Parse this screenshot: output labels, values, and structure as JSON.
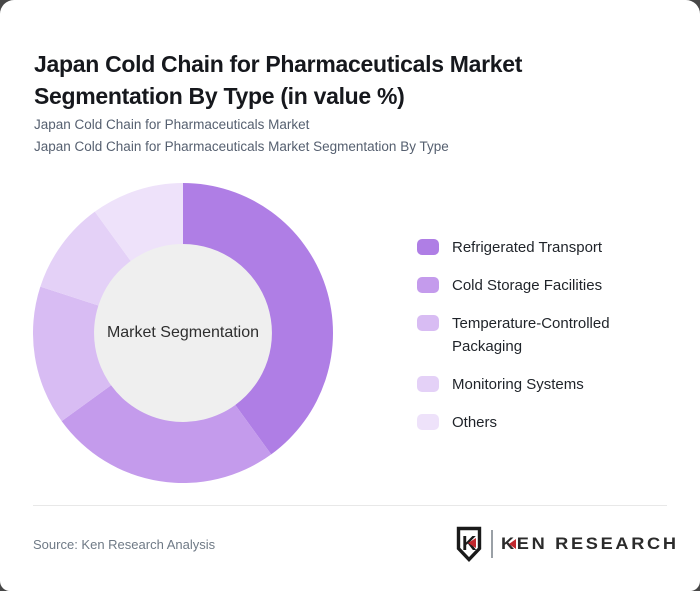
{
  "header": {
    "title_line1": "Japan Cold Chain for Pharmaceuticals Market",
    "title_line2": "Segmentation By Type (in value %)",
    "subtitle1": "Japan Cold Chain for Pharmaceuticals Market",
    "subtitle2": "Japan Cold Chain for Pharmaceuticals Market Segmentation By Type"
  },
  "chart_data": {
    "type": "pie",
    "donut": true,
    "title": "Japan Cold Chain for Pharmaceuticals Market Segmentation By Type (in value %)",
    "center_label": "Market Segmentation",
    "categories": [
      "Refrigerated Transport",
      "Cold Storage Facilities",
      "Temperature-Controlled Packaging",
      "Monitoring Systems",
      "Others"
    ],
    "values": [
      40,
      25,
      15,
      10,
      10
    ],
    "unit": "% of value",
    "colors": [
      "#af7ee5",
      "#c49bec",
      "#d8bcf3",
      "#e4d1f7",
      "#eee2fa"
    ],
    "start_angle_deg": 0,
    "direction": "clockwise",
    "inner_radius_ratio": 0.593,
    "center_fill": "#efefef",
    "legend_position": "right"
  },
  "footer": {
    "source": "Source: Ken Research Analysis",
    "logo_text": "KEN RESEARCH",
    "logo_shield_letter": "K",
    "logo_accent_color": "#c1272d"
  }
}
